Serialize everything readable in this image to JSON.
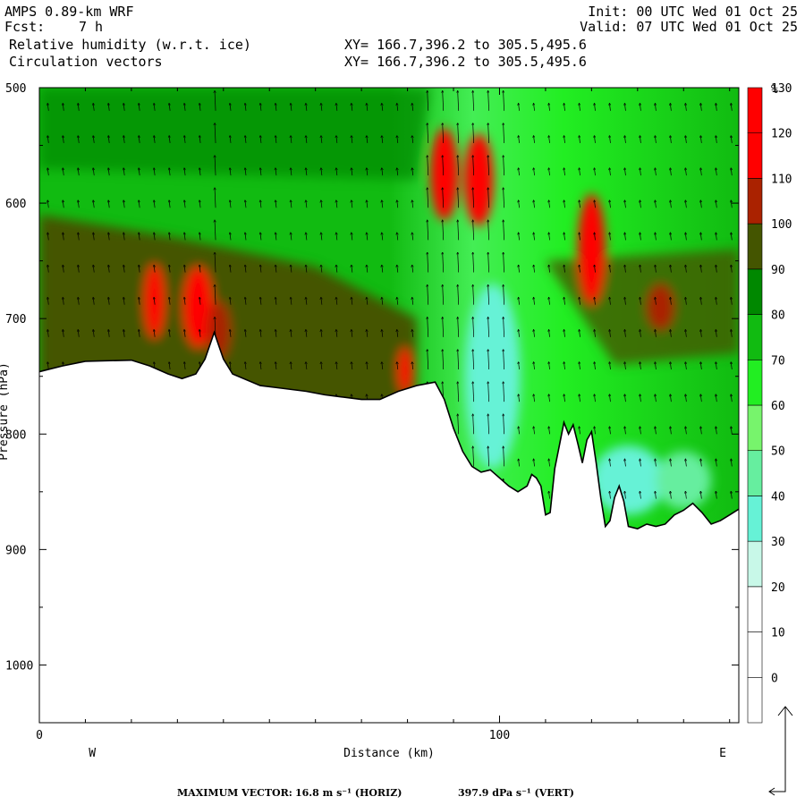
{
  "header": {
    "model": "AMPS 0.89-km WRF",
    "fcst_label": "Fcst:",
    "fcst_value": "7 h",
    "init": "Init: 00 UTC Wed 01 Oct 25",
    "valid": "Valid: 07 UTC Wed 01 Oct 25",
    "field1": "Relative humidity (w.r.t. ice)",
    "field2": "Circulation vectors",
    "xy1": "XY= 166.7,396.2 to 305.5,495.6",
    "xy2": "XY= 166.7,396.2 to 305.5,495.6"
  },
  "footer": {
    "max_vector_label": "MAXIMUM VECTOR:",
    "horiz": "16.8 m s⁻¹ (HORIZ)",
    "vert": "397.9 dPa s⁻¹ (VERT)"
  },
  "chart_data": {
    "type": "heatmap",
    "title": "Relative humidity (w.r.t. ice)",
    "subtitle": "Circulation vectors",
    "xlabel": "Distance (km)",
    "ylabel": "Pressure (hPa)",
    "x_range": [
      0,
      152
    ],
    "y_range": [
      500,
      1050
    ],
    "y_reversed": true,
    "x_ticks": [
      {
        "value": 0,
        "label": "0"
      },
      {
        "value": 100,
        "label": "100"
      }
    ],
    "x_minor_step": 10,
    "y_ticks": [
      500,
      600,
      700,
      800,
      900,
      1000
    ],
    "y_minor_step": 50,
    "direction_labels": {
      "left": "W",
      "right": "E"
    },
    "colorbar": {
      "unit": "%",
      "levels": [
        0,
        10,
        20,
        30,
        40,
        50,
        60,
        70,
        80,
        90,
        100,
        110,
        120,
        130
      ],
      "colors": [
        "#ffffff",
        "#ffffff",
        "#ffffff",
        "#c8f8e8",
        "#66f2d6",
        "#66ee9f",
        "#77f46c",
        "#22ee22",
        "#11bb11",
        "#008800",
        "#445500",
        "#aa2200",
        "#ff0000",
        "#ff0000"
      ]
    },
    "terrain": [
      [
        0,
        746
      ],
      [
        5,
        741
      ],
      [
        10,
        737
      ],
      [
        20,
        736
      ],
      [
        24,
        741
      ],
      [
        28,
        748
      ],
      [
        31,
        752
      ],
      [
        34,
        748
      ],
      [
        36,
        735
      ],
      [
        38,
        712
      ],
      [
        40,
        735
      ],
      [
        42,
        748
      ],
      [
        48,
        758
      ],
      [
        52,
        760
      ],
      [
        58,
        763
      ],
      [
        62,
        766
      ],
      [
        66,
        768
      ],
      [
        70,
        770
      ],
      [
        74,
        770
      ],
      [
        78,
        763
      ],
      [
        82,
        758
      ],
      [
        86,
        755
      ],
      [
        88,
        770
      ],
      [
        90,
        795
      ],
      [
        92,
        815
      ],
      [
        94,
        828
      ],
      [
        96,
        833
      ],
      [
        98,
        831
      ],
      [
        100,
        838
      ],
      [
        102,
        845
      ],
      [
        104,
        850
      ],
      [
        106,
        845
      ],
      [
        107,
        835
      ],
      [
        108,
        838
      ],
      [
        109,
        845
      ],
      [
        110,
        870
      ],
      [
        111,
        868
      ],
      [
        112,
        830
      ],
      [
        113,
        810
      ],
      [
        114,
        790
      ],
      [
        115,
        800
      ],
      [
        116,
        792
      ],
      [
        117,
        808
      ],
      [
        118,
        825
      ],
      [
        119,
        805
      ],
      [
        120,
        798
      ],
      [
        121,
        825
      ],
      [
        122,
        855
      ],
      [
        123,
        880
      ],
      [
        124,
        875
      ],
      [
        125,
        855
      ],
      [
        126,
        845
      ],
      [
        127,
        858
      ],
      [
        128,
        880
      ],
      [
        130,
        882
      ],
      [
        132,
        878
      ],
      [
        134,
        880
      ],
      [
        136,
        878
      ],
      [
        138,
        870
      ],
      [
        140,
        866
      ],
      [
        142,
        860
      ],
      [
        144,
        868
      ],
      [
        146,
        878
      ],
      [
        148,
        875
      ],
      [
        150,
        870
      ],
      [
        152,
        865
      ]
    ],
    "features": [
      {
        "kind": "ellipse",
        "x": 25,
        "p": 685,
        "rx": 2.2,
        "rp": 32,
        "rh": 120
      },
      {
        "kind": "ellipse",
        "x": 34.5,
        "p": 690,
        "rx": 3.2,
        "rp": 35,
        "rh": 120
      },
      {
        "kind": "ellipse",
        "x": 39,
        "p": 710,
        "rx": 2.5,
        "rp": 25,
        "rh": 115
      },
      {
        "kind": "ellipse",
        "x": 79.5,
        "p": 745,
        "rx": 1.5,
        "rp": 20,
        "rh": 120
      },
      {
        "kind": "ellipse",
        "x": 88,
        "p": 575,
        "rx": 3.0,
        "rp": 40,
        "rh": 120
      },
      {
        "kind": "ellipse",
        "x": 95.5,
        "p": 580,
        "rx": 3.2,
        "rp": 40,
        "rh": 130
      },
      {
        "kind": "ellipse",
        "x": 120,
        "p": 640,
        "rx": 3.0,
        "rp": 48,
        "rh": 130
      },
      {
        "kind": "ellipse",
        "x": 135,
        "p": 690,
        "rx": 3.0,
        "rp": 20,
        "rh": 115
      },
      {
        "kind": "ellipse",
        "x": 98.5,
        "p": 750,
        "rx": 6,
        "rp": 80,
        "rh": 45
      },
      {
        "kind": "ellipse",
        "x": 128,
        "p": 840,
        "rx": 8,
        "rp": 30,
        "rh": 45
      },
      {
        "kind": "ellipse",
        "x": 140,
        "p": 840,
        "rx": 6,
        "rp": 25,
        "rh": 55
      }
    ],
    "max_vector": {
      "horiz": 16.8,
      "horiz_unit": "m s⁻¹",
      "vert": 397.9,
      "vert_unit": "dPa s⁻¹"
    }
  },
  "colors": {
    "frame": "#000000",
    "background": "#ffffff"
  }
}
